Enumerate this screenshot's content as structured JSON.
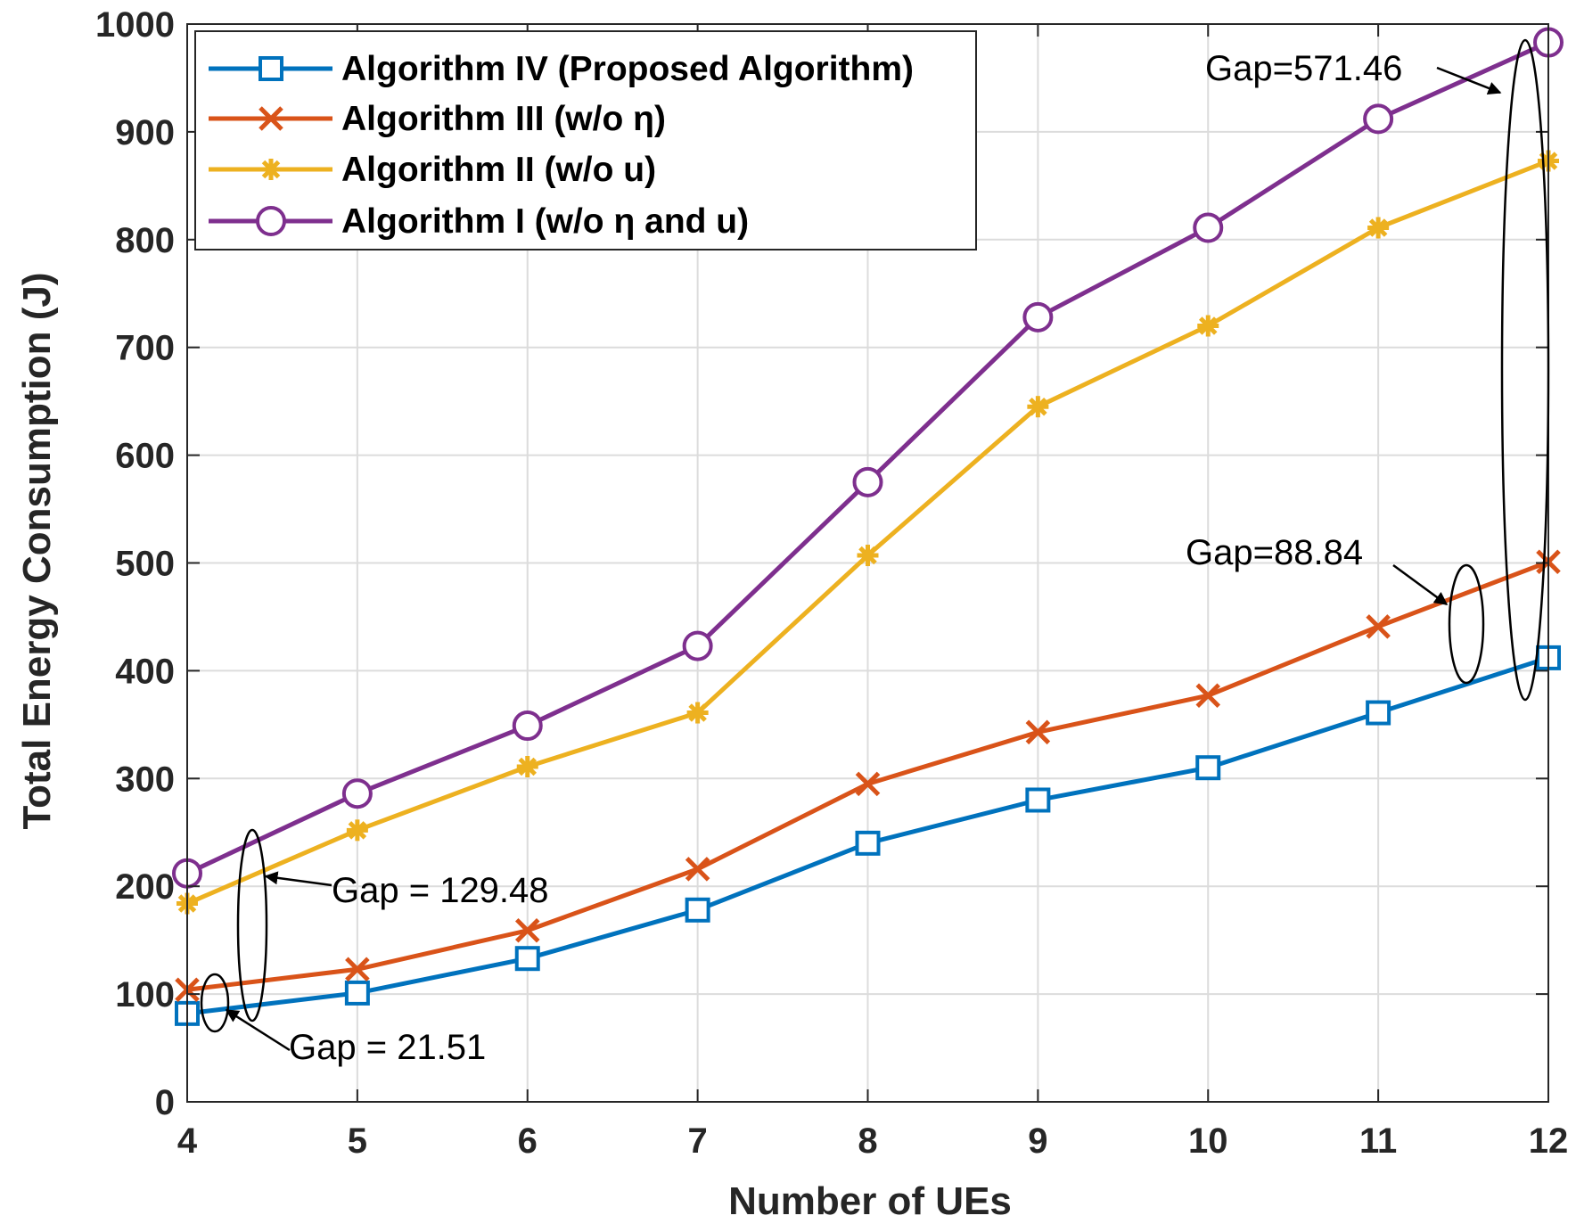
{
  "chart_data": {
    "type": "line",
    "title": "",
    "xlabel": "Number of UEs",
    "ylabel": "Total Energy Consumption (J)",
    "x": [
      4,
      5,
      6,
      7,
      8,
      9,
      10,
      11,
      12
    ],
    "xlim": [
      4,
      12
    ],
    "ylim": [
      0,
      1000
    ],
    "xticks": [
      "4",
      "5",
      "6",
      "7",
      "8",
      "9",
      "10",
      "11",
      "12"
    ],
    "yticks": [
      "0",
      "100",
      "200",
      "300",
      "400",
      "500",
      "600",
      "700",
      "800",
      "900",
      "1000"
    ],
    "grid": true,
    "legend_position": "top-left",
    "series": [
      {
        "name": "Algorithm IV (Proposed Algorithm)",
        "color": "#0072BD",
        "marker": "square",
        "values": [
          82,
          101,
          133,
          178,
          240,
          280,
          310,
          361,
          412
        ]
      },
      {
        "name": "Algorithm III (w/o η)",
        "color": "#D95319",
        "marker": "x",
        "values": [
          104,
          123,
          159,
          216,
          295,
          343,
          377,
          441,
          501
        ]
      },
      {
        "name": "Algorithm II (w/o u)",
        "color": "#EDB120",
        "marker": "asterisk",
        "values": [
          184,
          252,
          311,
          361,
          507,
          645,
          720,
          811,
          873
        ]
      },
      {
        "name": "Algorithm I (w/o η and u)",
        "color": "#7E2F8E",
        "marker": "circle",
        "values": [
          212,
          286,
          349,
          423,
          575,
          728,
          811,
          912,
          983
        ]
      }
    ],
    "annotations": [
      {
        "text": "Gap=571.46"
      },
      {
        "text": "Gap=88.84"
      },
      {
        "text": "Gap = 129.48"
      },
      {
        "text": "Gap = 21.51"
      }
    ]
  }
}
